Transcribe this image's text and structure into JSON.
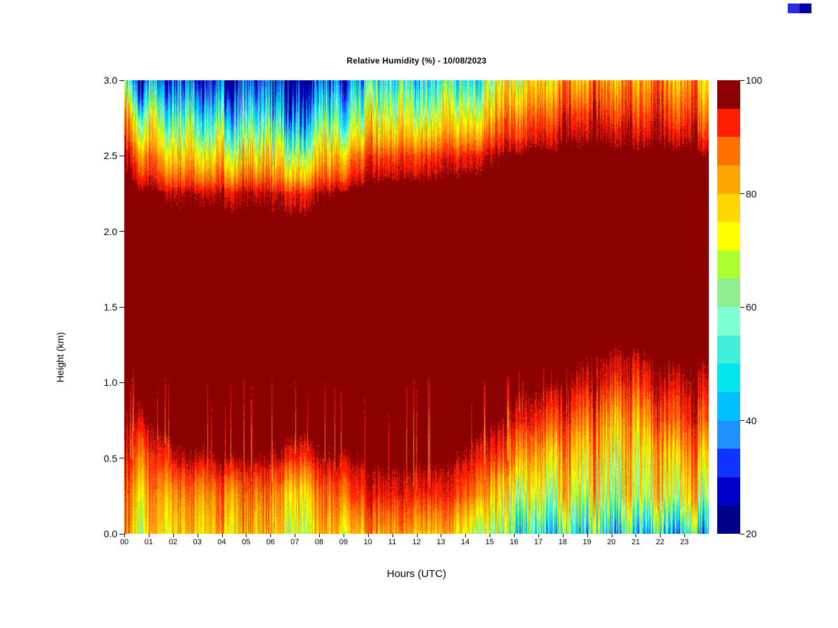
{
  "window": {
    "background": "#ffffff"
  },
  "corner_swatch": {
    "colors": [
      "#2B2BE0",
      "#0000A8"
    ]
  },
  "chart_data": {
    "type": "heatmap",
    "title": "Relative Humidity (%) - 10/08/2023",
    "xlabel": "Hours (UTC)",
    "ylabel": "Height (km)",
    "x_range_hours": [
      0,
      24
    ],
    "y_range_km": [
      0,
      3
    ],
    "grid": "off",
    "x_tick_labels": [
      "00",
      "01",
      "02",
      "03",
      "04",
      "05",
      "06",
      "07",
      "08",
      "09",
      "10",
      "11",
      "12",
      "13",
      "14",
      "15",
      "16",
      "17",
      "18",
      "19",
      "20",
      "21",
      "22",
      "23"
    ],
    "y_ticks": [
      {
        "value": 0,
        "label": "0.0"
      },
      {
        "value": 0.5,
        "label": "0.5"
      },
      {
        "value": 1,
        "label": "1.0"
      },
      {
        "value": 1.5,
        "label": "1.5"
      },
      {
        "value": 2,
        "label": "2.0"
      },
      {
        "value": 2.5,
        "label": "2.5"
      },
      {
        "value": 3,
        "label": "3.0"
      }
    ],
    "colorbar": {
      "min": 20,
      "max": 100,
      "tick_values": [
        20,
        40,
        60,
        80,
        100
      ],
      "band_step": 5,
      "band_colors_low_to_high": [
        "#00008B",
        "#0000CD",
        "#1133FF",
        "#1E90FF",
        "#00BFFF",
        "#00E5EE",
        "#40F0D8",
        "#7FFFD4",
        "#90EE90",
        "#ADFF2F",
        "#FFFF00",
        "#FFD700",
        "#FFA500",
        "#FF7000",
        "#FF1E00",
        "#8B0000"
      ],
      "position": "right"
    },
    "x_hours": [
      0,
      1,
      2,
      3,
      4,
      5,
      6,
      7,
      8,
      9,
      10,
      11,
      12,
      13,
      14,
      15,
      16,
      17,
      18,
      19,
      20,
      21,
      22,
      23
    ],
    "y_heights_km": [
      0,
      0.25,
      0.5,
      0.75,
      1,
      1.25,
      1.5,
      1.75,
      2,
      2.25,
      2.5,
      2.75,
      3
    ],
    "rh_grid_percent": [
      [
        80,
        78,
        80,
        80,
        80,
        78,
        75,
        73,
        78,
        82,
        83,
        83,
        82,
        80,
        72,
        58,
        50,
        48,
        48,
        47,
        46,
        45,
        45,
        47
      ],
      [
        85,
        83,
        86,
        86,
        86,
        85,
        82,
        80,
        86,
        92,
        93,
        93,
        93,
        92,
        88,
        70,
        68,
        67,
        66,
        65,
        66,
        68,
        70,
        68
      ],
      [
        92,
        90,
        96,
        96,
        97,
        97,
        95,
        93,
        96,
        97,
        98,
        98,
        98,
        97,
        95,
        88,
        82,
        78,
        75,
        73,
        71,
        75,
        80,
        79
      ],
      [
        96,
        97,
        100,
        100,
        100,
        100,
        100,
        100,
        100,
        100,
        100,
        100,
        100,
        100,
        99,
        96,
        93,
        90,
        87,
        83,
        79,
        88,
        90,
        90
      ],
      [
        99,
        99,
        100,
        100,
        100,
        100,
        100,
        100,
        100,
        100,
        100,
        100,
        100,
        100,
        100,
        99,
        98,
        97,
        95,
        93,
        90,
        95,
        95,
        95
      ],
      [
        100,
        100,
        100,
        100,
        100,
        100,
        100,
        100,
        100,
        100,
        100,
        100,
        100,
        100,
        100,
        100,
        100,
        100,
        99,
        98,
        97,
        99,
        99,
        99
      ],
      [
        100,
        100,
        100,
        100,
        100,
        100,
        100,
        100,
        100,
        100,
        100,
        100,
        100,
        100,
        100,
        100,
        100,
        100,
        100,
        100,
        100,
        100,
        100,
        100
      ],
      [
        100,
        100,
        100,
        100,
        100,
        100,
        100,
        100,
        100,
        100,
        100,
        100,
        100,
        100,
        100,
        100,
        100,
        100,
        100,
        100,
        100,
        100,
        100,
        100
      ],
      [
        100,
        100,
        100,
        100,
        100,
        100,
        100,
        100,
        100,
        100,
        100,
        100,
        100,
        100,
        100,
        100,
        100,
        100,
        100,
        100,
        100,
        100,
        100,
        100
      ],
      [
        100,
        98,
        96,
        96,
        95,
        95,
        94,
        94,
        96,
        99,
        100,
        100,
        100,
        100,
        100,
        100,
        100,
        100,
        100,
        100,
        100,
        100,
        100,
        100
      ],
      [
        95,
        86,
        80,
        78,
        75,
        73,
        70,
        70,
        76,
        88,
        90,
        90,
        92,
        93,
        95,
        97,
        98,
        98,
        99,
        99,
        98,
        99,
        98,
        97
      ],
      [
        82,
        66,
        60,
        55,
        50,
        48,
        45,
        45,
        52,
        66,
        70,
        70,
        72,
        75,
        78,
        85,
        88,
        90,
        92,
        92,
        90,
        92,
        90,
        88
      ],
      [
        48,
        40,
        38,
        32,
        28,
        27,
        25,
        25,
        32,
        46,
        50,
        50,
        52,
        55,
        60,
        70,
        75,
        78,
        80,
        82,
        80,
        85,
        80,
        78
      ]
    ],
    "noise": {
      "seed": 20231008,
      "column_streak_strength": 0.5,
      "smooth_streak_strength": 0.35,
      "interior_spike_probability": 0.06,
      "pixel_noise": 3
    }
  }
}
